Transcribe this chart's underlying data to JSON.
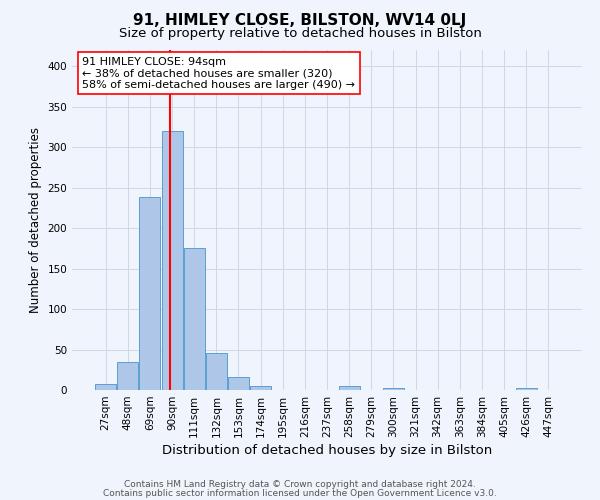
{
  "title": "91, HIMLEY CLOSE, BILSTON, WV14 0LJ",
  "subtitle": "Size of property relative to detached houses in Bilston",
  "xlabel": "Distribution of detached houses by size in Bilston",
  "ylabel": "Number of detached properties",
  "footnote1": "Contains HM Land Registry data © Crown copyright and database right 2024.",
  "footnote2": "Contains public sector information licensed under the Open Government Licence v3.0.",
  "bin_labels": [
    "27sqm",
    "48sqm",
    "69sqm",
    "90sqm",
    "111sqm",
    "132sqm",
    "153sqm",
    "174sqm",
    "195sqm",
    "216sqm",
    "237sqm",
    "258sqm",
    "279sqm",
    "300sqm",
    "321sqm",
    "342sqm",
    "363sqm",
    "384sqm",
    "405sqm",
    "426sqm",
    "447sqm"
  ],
  "bin_values": [
    8,
    35,
    238,
    320,
    175,
    46,
    16,
    5,
    0,
    0,
    0,
    5,
    0,
    3,
    0,
    0,
    0,
    0,
    0,
    3,
    0
  ],
  "bar_color": "#aec6e8",
  "bar_edge_color": "#5a9fd4",
  "grid_color": "#d0d8e8",
  "background_color": "#f0f4fc",
  "annotation_text": "91 HIMLEY CLOSE: 94sqm\n← 38% of detached houses are smaller (320)\n58% of semi-detached houses are larger (490) →",
  "annotation_box_color": "white",
  "annotation_box_edge": "red",
  "ylim": [
    0,
    420
  ],
  "yticks": [
    0,
    50,
    100,
    150,
    200,
    250,
    300,
    350,
    400
  ],
  "title_fontsize": 11,
  "subtitle_fontsize": 9.5,
  "xlabel_fontsize": 9.5,
  "ylabel_fontsize": 8.5,
  "tick_fontsize": 7.5,
  "annotation_fontsize": 8,
  "red_line_x": 2.9
}
